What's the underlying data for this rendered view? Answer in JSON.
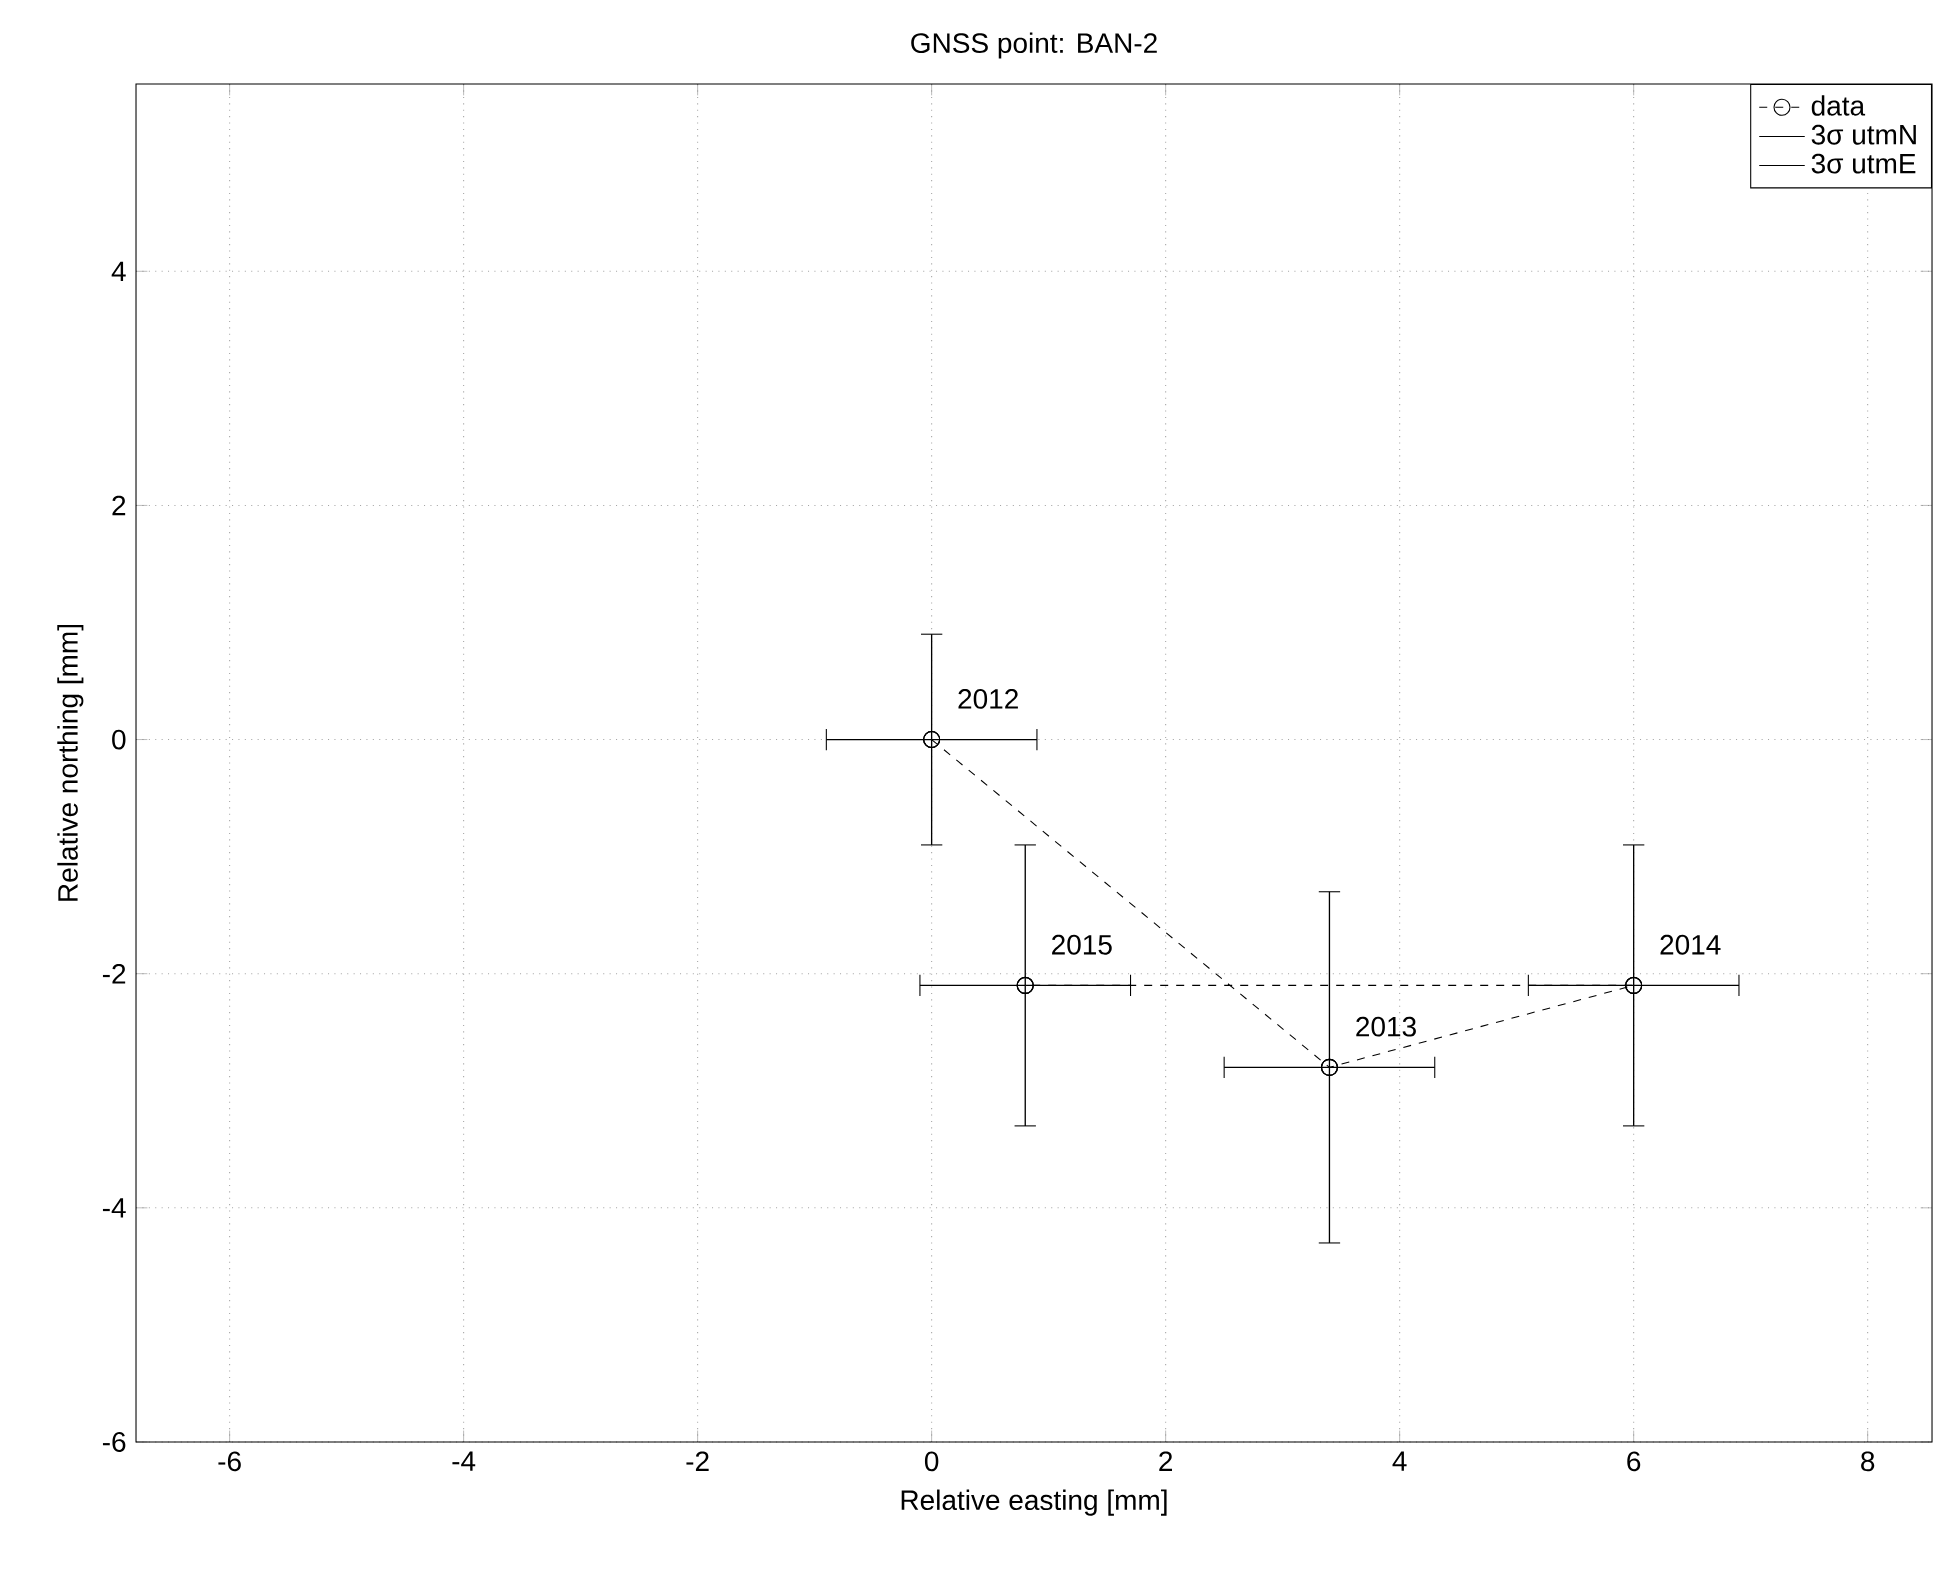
{
  "chart_data": {
    "type": "line",
    "title": "GNSS point: BAN-2",
    "xlabel": "Relative easting [mm]",
    "ylabel": "Relative northing [mm]",
    "series": [
      {
        "name": "data",
        "color": "#000000",
        "x": [
          0,
          3.4,
          6.0,
          0.8
        ],
        "values": [
          0,
          -2.8,
          -2.1,
          -2.1
        ]
      },
      {
        "name": "3σ utmN",
        "type": "scatter",
        "color": "#000000",
        "x": [
          0,
          3.4,
          6.0,
          0.8
        ],
        "values": [
          0,
          -2.8,
          -2.1,
          -2.1
        ],
        "errors": [
          0.9,
          1.5,
          1.2,
          1.2
        ]
      },
      {
        "name": "3σ utmE",
        "type": "scatter",
        "color": "#000000",
        "x": [
          0,
          3.4,
          6.0,
          0.8
        ],
        "values": [
          0,
          -2.8,
          -2.1,
          -2.1
        ],
        "xerrors": [
          0.9,
          0.9,
          0.9,
          0.9
        ]
      }
    ],
    "annotations": [
      {
        "text": "2012",
        "x": 0,
        "y": 0
      },
      {
        "text": "2013",
        "x": 3.4,
        "y": -2.8
      },
      {
        "text": "2014",
        "x": 6.0,
        "y": -2.1
      },
      {
        "text": "2015",
        "x": 0.8,
        "y": -2.1
      }
    ],
    "xlim": [
      -6.8,
      8.55
    ],
    "ylim": [
      -6,
      5.6
    ],
    "xticks": [
      -6,
      -4,
      -2,
      0,
      2,
      4,
      6,
      8
    ],
    "yticks": [
      -6,
      -4,
      -2,
      0,
      2,
      4
    ],
    "grid": true,
    "legend": "top right",
    "marker": "circle",
    "line_style": "dashed"
  }
}
